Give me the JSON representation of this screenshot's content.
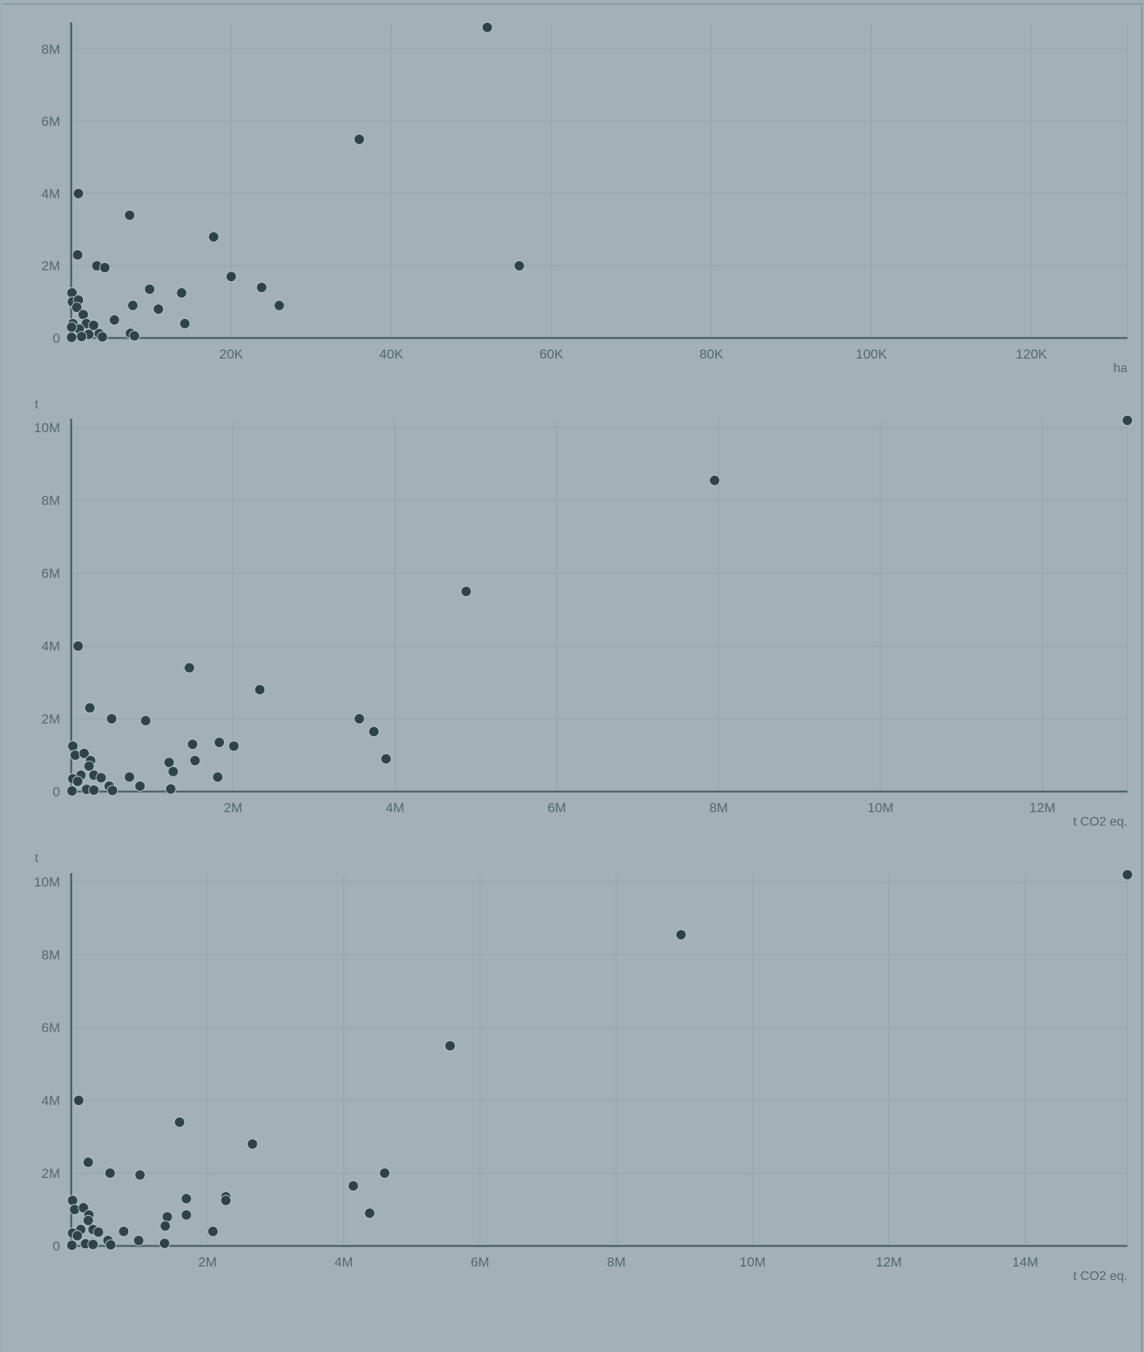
{
  "colors": {
    "background": "#a3b1b6",
    "dot": "#2e4449",
    "axis": "#4c6469",
    "grid": "#93a3a8",
    "text": "#52686d"
  },
  "chart_data": [
    {
      "type": "scatter",
      "ylabel": "",
      "xlabel": "ha",
      "xlim": [
        0,
        132000
      ],
      "ylim": [
        0,
        8700000
      ],
      "x_ticks": [
        20000,
        40000,
        60000,
        80000,
        100000,
        120000
      ],
      "x_tick_labels": [
        "20K",
        "40K",
        "60K",
        "80K",
        "100K",
        "120K"
      ],
      "y_ticks": [
        0,
        2000000,
        4000000,
        6000000,
        8000000
      ],
      "y_tick_labels": [
        "0",
        "2M",
        "4M",
        "6M",
        "8M"
      ],
      "grid": true,
      "points": [
        [
          52000,
          8600000
        ],
        [
          36000,
          5500000
        ],
        [
          56000,
          2000000
        ],
        [
          900,
          4000000
        ],
        [
          7300,
          3400000
        ],
        [
          17800,
          2800000
        ],
        [
          800,
          2300000
        ],
        [
          3200,
          2000000
        ],
        [
          4200,
          1950000
        ],
        [
          20000,
          1700000
        ],
        [
          23800,
          1400000
        ],
        [
          9800,
          1350000
        ],
        [
          13800,
          1250000
        ],
        [
          7700,
          900000
        ],
        [
          10900,
          800000
        ],
        [
          26000,
          900000
        ],
        [
          5400,
          500000
        ],
        [
          14200,
          400000
        ],
        [
          7400,
          130000
        ],
        [
          7900,
          60000
        ],
        [
          100,
          1250000
        ],
        [
          150,
          1000000
        ],
        [
          900,
          1050000
        ],
        [
          700,
          850000
        ],
        [
          1500,
          650000
        ],
        [
          200,
          400000
        ],
        [
          1900,
          400000
        ],
        [
          2800,
          350000
        ],
        [
          1000,
          250000
        ],
        [
          50,
          300000
        ],
        [
          2200,
          100000
        ],
        [
          3500,
          120000
        ],
        [
          3900,
          30000
        ],
        [
          1300,
          40000
        ],
        [
          50,
          20000
        ]
      ]
    },
    {
      "type": "scatter",
      "ylabel": "t",
      "xlabel": "t CO2 eq.",
      "xlim": [
        0,
        13050000
      ],
      "ylim": [
        0,
        10200000
      ],
      "x_ticks": [
        2000000,
        4000000,
        6000000,
        8000000,
        10000000,
        12000000
      ],
      "x_tick_labels": [
        "2M",
        "4M",
        "6M",
        "8M",
        "10M",
        "12M"
      ],
      "y_ticks": [
        0,
        2000000,
        4000000,
        6000000,
        8000000,
        10000000
      ],
      "y_tick_labels": [
        "0",
        "2M",
        "4M",
        "6M",
        "8M",
        "10M"
      ],
      "grid": true,
      "points": [
        [
          13050000,
          10200000
        ],
        [
          7950000,
          8550000
        ],
        [
          4880000,
          5500000
        ],
        [
          85000,
          4000000
        ],
        [
          1460000,
          3400000
        ],
        [
          2330000,
          2800000
        ],
        [
          230000,
          2300000
        ],
        [
          500000,
          2000000
        ],
        [
          920000,
          1950000
        ],
        [
          3560000,
          2000000
        ],
        [
          3740000,
          1650000
        ],
        [
          3890000,
          900000
        ],
        [
          1500000,
          1300000
        ],
        [
          1830000,
          1350000
        ],
        [
          2010000,
          1250000
        ],
        [
          1530000,
          850000
        ],
        [
          1210000,
          800000
        ],
        [
          1260000,
          550000
        ],
        [
          1810000,
          400000
        ],
        [
          720000,
          400000
        ],
        [
          850000,
          150000
        ],
        [
          1230000,
          70000
        ],
        [
          20000,
          1250000
        ],
        [
          50000,
          1000000
        ],
        [
          160000,
          1050000
        ],
        [
          240000,
          850000
        ],
        [
          220000,
          700000
        ],
        [
          120000,
          450000
        ],
        [
          280000,
          450000
        ],
        [
          370000,
          380000
        ],
        [
          20000,
          350000
        ],
        [
          80000,
          280000
        ],
        [
          470000,
          150000
        ],
        [
          510000,
          30000
        ],
        [
          190000,
          60000
        ],
        [
          280000,
          40000
        ],
        [
          10000,
          20000
        ]
      ]
    },
    {
      "type": "scatter",
      "ylabel": "t",
      "xlabel": "t CO2 eq.",
      "xlim": [
        0,
        15500000
      ],
      "ylim": [
        0,
        10200000
      ],
      "x_ticks": [
        2000000,
        4000000,
        6000000,
        8000000,
        10000000,
        12000000,
        14000000
      ],
      "x_tick_labels": [
        "2M",
        "4M",
        "6M",
        "8M",
        "10M",
        "12M",
        "14M"
      ],
      "y_ticks": [
        0,
        2000000,
        4000000,
        6000000,
        8000000,
        10000000
      ],
      "y_tick_labels": [
        "0",
        "2M",
        "4M",
        "6M",
        "8M",
        "10M"
      ],
      "grid": true,
      "points": [
        [
          15500000,
          10200000
        ],
        [
          8950000,
          8550000
        ],
        [
          5560000,
          5500000
        ],
        [
          110000,
          4000000
        ],
        [
          1590000,
          3400000
        ],
        [
          2660000,
          2800000
        ],
        [
          250000,
          2300000
        ],
        [
          570000,
          2000000
        ],
        [
          1010000,
          1950000
        ],
        [
          4600000,
          2000000
        ],
        [
          4140000,
          1650000
        ],
        [
          4380000,
          900000
        ],
        [
          1690000,
          1300000
        ],
        [
          2270000,
          1350000
        ],
        [
          2270000,
          1250000
        ],
        [
          1690000,
          850000
        ],
        [
          1410000,
          800000
        ],
        [
          1380000,
          550000
        ],
        [
          2080000,
          400000
        ],
        [
          770000,
          400000
        ],
        [
          990000,
          150000
        ],
        [
          1370000,
          70000
        ],
        [
          20000,
          1250000
        ],
        [
          50000,
          1000000
        ],
        [
          180000,
          1050000
        ],
        [
          260000,
          850000
        ],
        [
          250000,
          700000
        ],
        [
          140000,
          450000
        ],
        [
          320000,
          450000
        ],
        [
          400000,
          380000
        ],
        [
          20000,
          350000
        ],
        [
          90000,
          280000
        ],
        [
          540000,
          150000
        ],
        [
          580000,
          30000
        ],
        [
          210000,
          60000
        ],
        [
          320000,
          40000
        ],
        [
          10000,
          20000
        ]
      ]
    }
  ]
}
